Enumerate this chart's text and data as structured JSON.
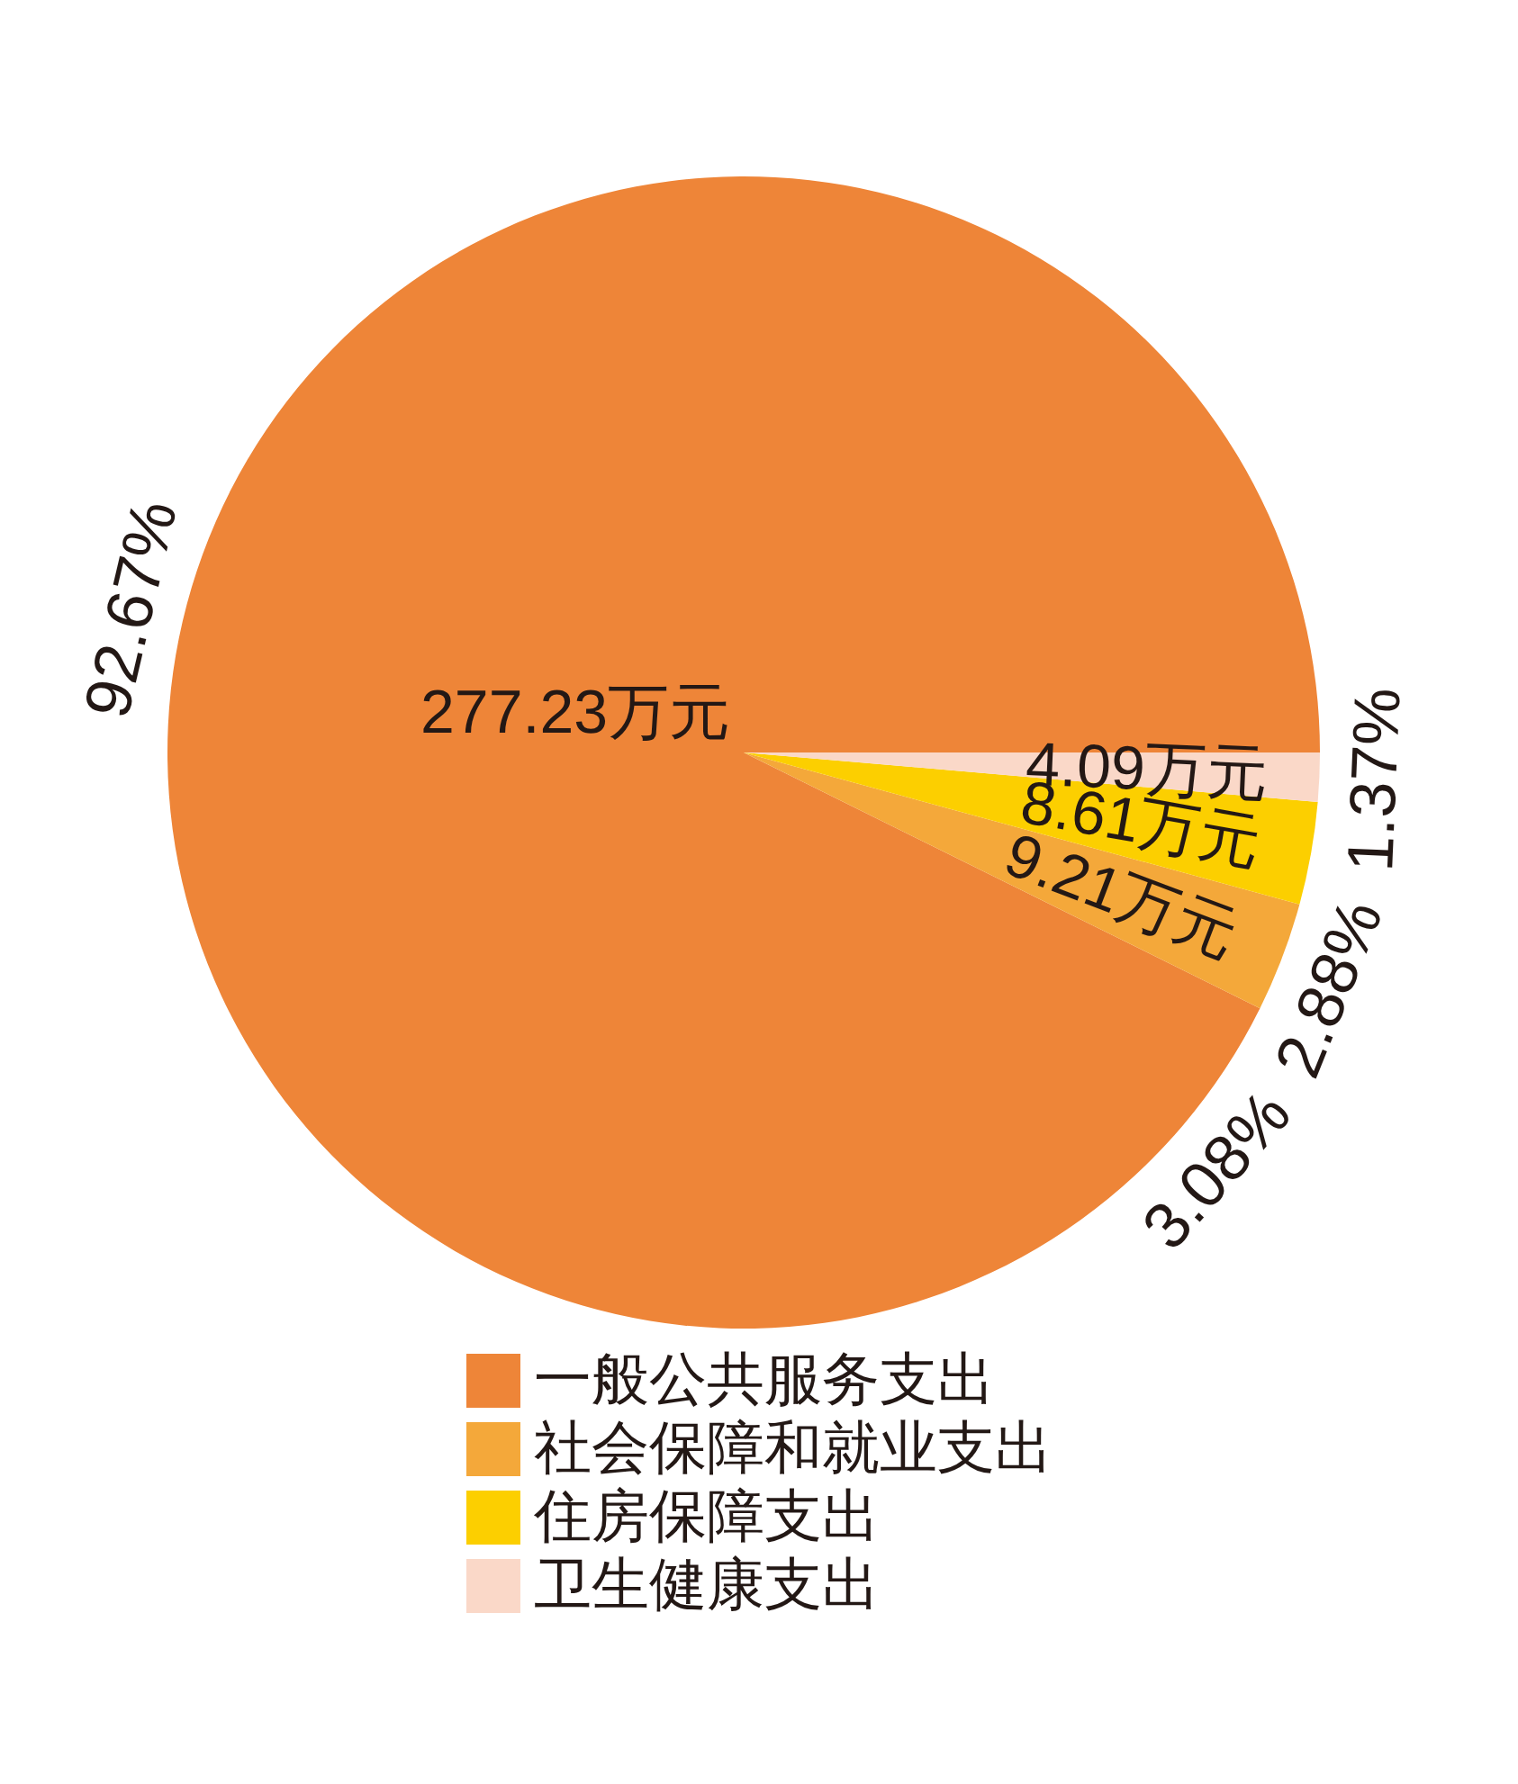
{
  "chart_data": {
    "type": "pie",
    "categories": [
      "一般公共服务支出",
      "社会保障和就业支出",
      "住房保障支出",
      "卫生健康支出"
    ],
    "values": [
      277.23,
      9.21,
      8.61,
      4.09
    ],
    "colors": [
      "#ee8538",
      "#f4a83a",
      "#fccf00",
      "#fad8c8"
    ],
    "value_labels": [
      "277.23万元",
      "9.21万元",
      "8.61万元",
      "4.09万元"
    ],
    "annotations": [
      "92.67%",
      "3.08%",
      "2.88%",
      "1.37%"
    ],
    "legend": "bottom"
  }
}
